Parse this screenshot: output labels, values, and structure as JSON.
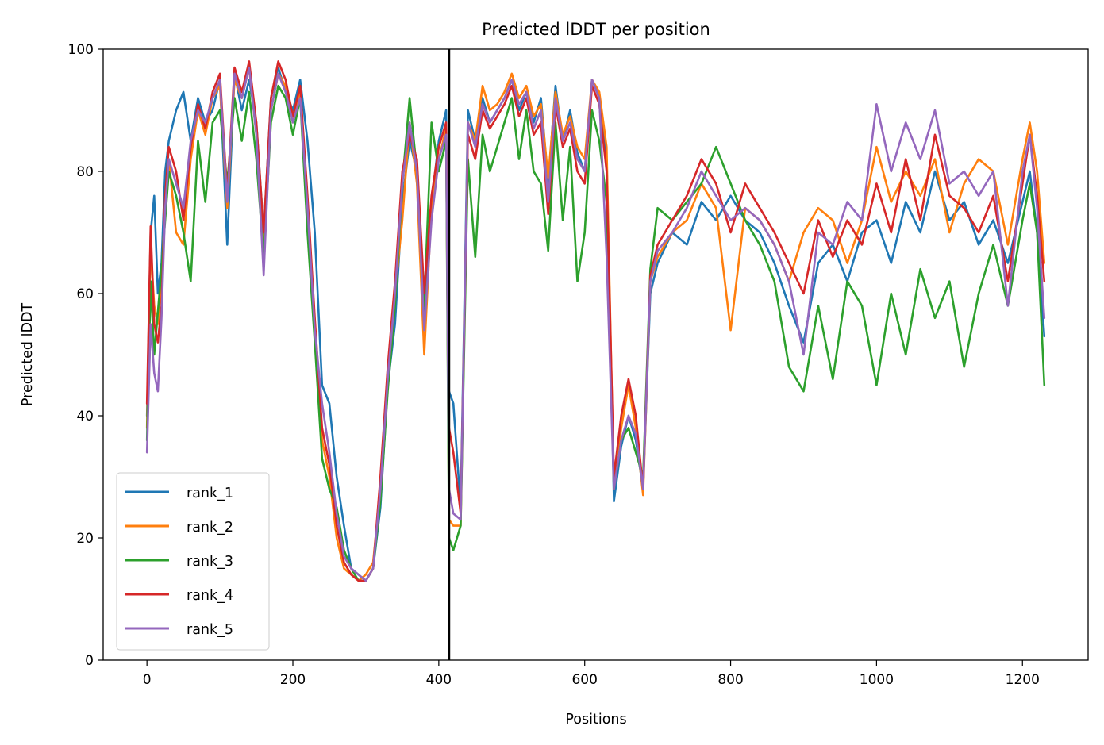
{
  "chart_data": {
    "type": "line",
    "title": "Predicted lDDT per position",
    "xlabel": "Positions",
    "ylabel": "Predicted lDDT",
    "xlim": [
      -60,
      1290
    ],
    "ylim": [
      0,
      100
    ],
    "xticks": [
      0,
      200,
      400,
      600,
      800,
      1000,
      1200
    ],
    "yticks": [
      0,
      20,
      40,
      60,
      80,
      100
    ],
    "vline_x": 414,
    "legend_position": "lower left",
    "grid": false,
    "series": [
      {
        "name": "rank_1",
        "color": "#1f77b4",
        "x": [
          0,
          5,
          10,
          15,
          20,
          25,
          30,
          40,
          50,
          60,
          70,
          80,
          90,
          100,
          110,
          120,
          130,
          140,
          150,
          160,
          170,
          180,
          190,
          200,
          210,
          220,
          230,
          240,
          250,
          260,
          270,
          280,
          290,
          300,
          310,
          320,
          330,
          340,
          350,
          360,
          370,
          380,
          390,
          400,
          410,
          414,
          420,
          430,
          440,
          450,
          460,
          470,
          480,
          490,
          500,
          510,
          520,
          530,
          540,
          550,
          560,
          570,
          580,
          590,
          600,
          610,
          620,
          630,
          640,
          650,
          660,
          670,
          680,
          690,
          700,
          720,
          740,
          760,
          780,
          800,
          820,
          840,
          860,
          880,
          900,
          920,
          940,
          960,
          980,
          1000,
          1020,
          1040,
          1060,
          1080,
          1100,
          1120,
          1140,
          1160,
          1180,
          1200,
          1210,
          1220,
          1230
        ],
        "y": [
          40,
          70,
          76,
          60,
          65,
          80,
          85,
          90,
          93,
          85,
          92,
          88,
          90,
          95,
          68,
          96,
          90,
          95,
          88,
          70,
          92,
          97,
          93,
          90,
          95,
          85,
          70,
          45,
          42,
          30,
          22,
          15,
          14,
          13,
          15,
          25,
          45,
          55,
          75,
          85,
          80,
          55,
          75,
          85,
          90,
          44,
          42,
          25,
          90,
          85,
          92,
          88,
          90,
          92,
          95,
          90,
          93,
          88,
          92,
          78,
          94,
          85,
          90,
          83,
          80,
          95,
          92,
          82,
          26,
          35,
          40,
          36,
          28,
          60,
          65,
          70,
          68,
          75,
          72,
          76,
          72,
          70,
          65,
          58,
          52,
          65,
          68,
          62,
          70,
          72,
          65,
          75,
          70,
          80,
          72,
          75,
          68,
          72,
          65,
          75,
          80,
          70,
          53
        ]
      },
      {
        "name": "rank_2",
        "color": "#ff7f0e",
        "x": [
          0,
          5,
          10,
          15,
          20,
          25,
          30,
          40,
          50,
          60,
          70,
          80,
          90,
          100,
          110,
          120,
          130,
          140,
          150,
          160,
          170,
          180,
          190,
          200,
          210,
          220,
          230,
          240,
          250,
          260,
          270,
          280,
          290,
          300,
          310,
          320,
          330,
          340,
          350,
          360,
          370,
          380,
          390,
          400,
          410,
          414,
          420,
          430,
          440,
          450,
          460,
          470,
          480,
          490,
          500,
          510,
          520,
          530,
          540,
          550,
          560,
          570,
          580,
          590,
          600,
          610,
          620,
          630,
          640,
          650,
          660,
          670,
          680,
          690,
          700,
          720,
          740,
          760,
          780,
          800,
          820,
          840,
          860,
          880,
          900,
          920,
          940,
          960,
          980,
          1000,
          1020,
          1040,
          1060,
          1080,
          1100,
          1120,
          1140,
          1160,
          1180,
          1200,
          1210,
          1220,
          1230
        ],
        "y": [
          38,
          68,
          58,
          55,
          62,
          75,
          82,
          70,
          68,
          82,
          90,
          86,
          92,
          94,
          74,
          95,
          92,
          97,
          86,
          68,
          90,
          96,
          94,
          88,
          93,
          72,
          55,
          36,
          30,
          20,
          15,
          14,
          13,
          14,
          16,
          28,
          45,
          60,
          72,
          88,
          78,
          50,
          74,
          82,
          87,
          23,
          22,
          22,
          88,
          85,
          94,
          90,
          91,
          93,
          96,
          92,
          94,
          89,
          91,
          79,
          93,
          86,
          89,
          84,
          82,
          95,
          93,
          84,
          28,
          38,
          45,
          38,
          27,
          62,
          66,
          70,
          72,
          78,
          74,
          54,
          74,
          72,
          68,
          62,
          70,
          74,
          72,
          65,
          72,
          84,
          75,
          80,
          76,
          82,
          70,
          78,
          82,
          80,
          68,
          82,
          88,
          80,
          65
        ]
      },
      {
        "name": "rank_3",
        "color": "#2ca02c",
        "x": [
          0,
          5,
          10,
          15,
          20,
          25,
          30,
          40,
          50,
          60,
          70,
          80,
          90,
          100,
          110,
          120,
          130,
          140,
          150,
          160,
          170,
          180,
          190,
          200,
          210,
          220,
          230,
          240,
          250,
          260,
          270,
          280,
          290,
          300,
          310,
          320,
          330,
          340,
          350,
          360,
          370,
          380,
          390,
          400,
          410,
          414,
          420,
          430,
          440,
          450,
          460,
          470,
          480,
          490,
          500,
          510,
          520,
          530,
          540,
          550,
          560,
          570,
          580,
          590,
          600,
          610,
          620,
          630,
          640,
          650,
          660,
          670,
          680,
          690,
          700,
          720,
          740,
          760,
          780,
          800,
          820,
          840,
          860,
          880,
          900,
          920,
          940,
          960,
          980,
          1000,
          1020,
          1040,
          1060,
          1080,
          1100,
          1120,
          1140,
          1160,
          1180,
          1200,
          1210,
          1220,
          1230
        ],
        "y": [
          36,
          62,
          50,
          57,
          64,
          72,
          80,
          76,
          70,
          62,
          85,
          75,
          88,
          90,
          78,
          92,
          85,
          93,
          82,
          66,
          88,
          94,
          92,
          86,
          92,
          70,
          52,
          33,
          28,
          25,
          18,
          15,
          13,
          13,
          15,
          26,
          44,
          58,
          78,
          92,
          80,
          58,
          88,
          80,
          85,
          20,
          18,
          22,
          82,
          66,
          86,
          80,
          84,
          88,
          92,
          82,
          90,
          80,
          78,
          67,
          88,
          72,
          84,
          62,
          70,
          90,
          85,
          75,
          28,
          36,
          38,
          34,
          30,
          64,
          74,
          72,
          75,
          78,
          84,
          78,
          72,
          68,
          62,
          48,
          44,
          58,
          46,
          62,
          58,
          45,
          60,
          50,
          64,
          56,
          62,
          48,
          60,
          68,
          58,
          72,
          78,
          70,
          45
        ]
      },
      {
        "name": "rank_4",
        "color": "#d62728",
        "x": [
          0,
          5,
          10,
          15,
          20,
          25,
          30,
          40,
          50,
          60,
          70,
          80,
          90,
          100,
          110,
          120,
          130,
          140,
          150,
          160,
          170,
          180,
          190,
          200,
          210,
          220,
          230,
          240,
          250,
          260,
          270,
          280,
          290,
          300,
          310,
          320,
          330,
          340,
          350,
          360,
          370,
          380,
          390,
          400,
          410,
          414,
          420,
          430,
          440,
          450,
          460,
          470,
          480,
          490,
          500,
          510,
          520,
          530,
          540,
          550,
          560,
          570,
          580,
          590,
          600,
          610,
          620,
          630,
          640,
          650,
          660,
          670,
          680,
          690,
          700,
          720,
          740,
          760,
          780,
          800,
          820,
          840,
          860,
          880,
          900,
          920,
          940,
          960,
          980,
          1000,
          1020,
          1040,
          1060,
          1080,
          1100,
          1120,
          1140,
          1160,
          1180,
          1200,
          1210,
          1220,
          1230
        ],
        "y": [
          42,
          71,
          55,
          52,
          58,
          76,
          84,
          80,
          72,
          84,
          91,
          87,
          93,
          96,
          76,
          97,
          93,
          98,
          88,
          70,
          92,
          98,
          95,
          89,
          94,
          76,
          56,
          38,
          32,
          22,
          16,
          14,
          13,
          13,
          15,
          30,
          48,
          62,
          80,
          86,
          82,
          60,
          76,
          84,
          88,
          38,
          34,
          24,
          86,
          82,
          90,
          87,
          89,
          91,
          94,
          89,
          92,
          86,
          88,
          73,
          91,
          84,
          87,
          80,
          78,
          94,
          91,
          80,
          30,
          40,
          46,
          40,
          28,
          63,
          68,
          72,
          76,
          82,
          78,
          70,
          78,
          74,
          70,
          65,
          60,
          72,
          66,
          72,
          68,
          78,
          70,
          82,
          72,
          86,
          76,
          74,
          70,
          76,
          62,
          78,
          86,
          76,
          62
        ]
      },
      {
        "name": "rank_5",
        "color": "#9467bd",
        "x": [
          0,
          5,
          10,
          15,
          20,
          25,
          30,
          40,
          50,
          60,
          70,
          80,
          90,
          100,
          110,
          120,
          130,
          140,
          150,
          160,
          170,
          180,
          190,
          200,
          210,
          220,
          230,
          240,
          250,
          260,
          270,
          280,
          290,
          300,
          310,
          320,
          330,
          340,
          350,
          360,
          370,
          380,
          390,
          400,
          410,
          414,
          420,
          430,
          440,
          450,
          460,
          470,
          480,
          490,
          500,
          510,
          520,
          530,
          540,
          550,
          560,
          570,
          580,
          590,
          600,
          610,
          620,
          630,
          640,
          650,
          660,
          670,
          680,
          690,
          700,
          720,
          740,
          760,
          780,
          800,
          820,
          840,
          860,
          880,
          900,
          920,
          940,
          960,
          980,
          1000,
          1020,
          1040,
          1060,
          1080,
          1100,
          1120,
          1140,
          1160,
          1180,
          1200,
          1210,
          1220,
          1230
        ],
        "y": [
          34,
          55,
          47,
          44,
          56,
          74,
          82,
          78,
          74,
          85,
          90,
          88,
          92,
          95,
          75,
          96,
          92,
          97,
          86,
          63,
          90,
          96,
          93,
          88,
          92,
          74,
          54,
          42,
          34,
          24,
          17,
          15,
          14,
          13,
          15,
          28,
          46,
          60,
          78,
          88,
          80,
          54,
          72,
          82,
          86,
          28,
          24,
          23,
          88,
          84,
          91,
          88,
          90,
          92,
          95,
          91,
          93,
          87,
          90,
          75,
          92,
          85,
          88,
          82,
          80,
          95,
          92,
          66,
          28,
          36,
          40,
          37,
          28,
          62,
          67,
          70,
          74,
          80,
          76,
          72,
          74,
          72,
          68,
          62,
          50,
          70,
          68,
          75,
          72,
          91,
          80,
          88,
          82,
          90,
          78,
          80,
          76,
          80,
          58,
          80,
          86,
          74,
          56
        ]
      }
    ]
  }
}
